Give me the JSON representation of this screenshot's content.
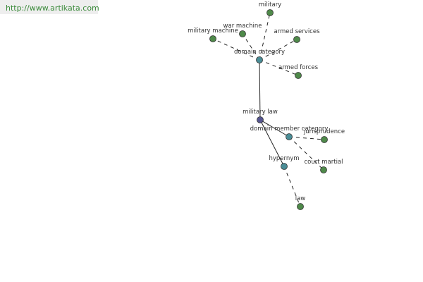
{
  "header": {
    "url": "http://www.artikata.com"
  },
  "nodes": [
    {
      "label": "military law"
    },
    {
      "label": "domain category"
    },
    {
      "label": "domain member category"
    },
    {
      "label": "hypernym"
    },
    {
      "label": "military"
    },
    {
      "label": "war machine"
    },
    {
      "label": "military machine"
    },
    {
      "label": "armed services"
    },
    {
      "label": "armed forces"
    },
    {
      "label": "jurisprudence"
    },
    {
      "label": "court martial"
    },
    {
      "label": "law"
    }
  ]
}
